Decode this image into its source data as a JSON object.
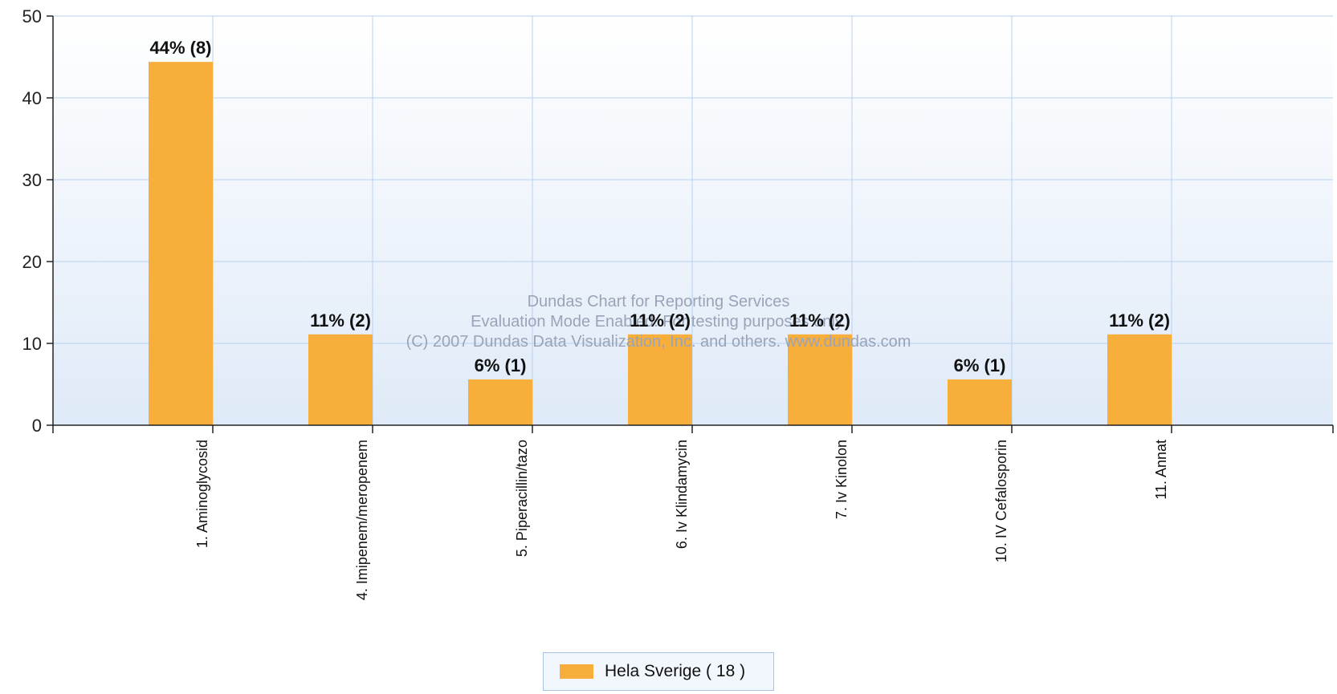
{
  "chart_data": {
    "type": "bar",
    "categories": [
      "1.  Aminoglycosid",
      "4.  Imipenem/meropenem",
      "5.  Piperacillin/tazo",
      "6.  Iv Klindamycin",
      "7.  Iv Kinolon",
      "10. IV Cefalosporin",
      "11. Annat"
    ],
    "values": [
      44.4,
      11.1,
      5.6,
      11.1,
      11.1,
      5.6,
      11.1
    ],
    "data_labels": [
      "44% (8)",
      "11% (2)",
      "6% (1)",
      "11% (2)",
      "11% (2)",
      "6% (1)",
      "11% (2)"
    ],
    "series": [
      {
        "name": "Hela Sverige  ( 18 )",
        "values": [
          44.4,
          11.1,
          5.6,
          11.1,
          11.1,
          5.6,
          11.1
        ]
      }
    ],
    "ylim": [
      0,
      50
    ],
    "yticks": [
      "0",
      "10",
      "20",
      "30",
      "40",
      "50"
    ],
    "grid": true,
    "legend_position": "bottom-center",
    "bar_color": "#f7ae3b",
    "grid_color": "#b9d1ee",
    "watermark": [
      "Dundas Chart for Reporting Services",
      "Evaluation Mode Enabled. For testing purposes only.",
      "(C) 2007 Dundas Data Visualization, Inc. and others. www.dundas.com"
    ]
  },
  "legend": {
    "label": "Hela Sverige  ( 18 )"
  }
}
